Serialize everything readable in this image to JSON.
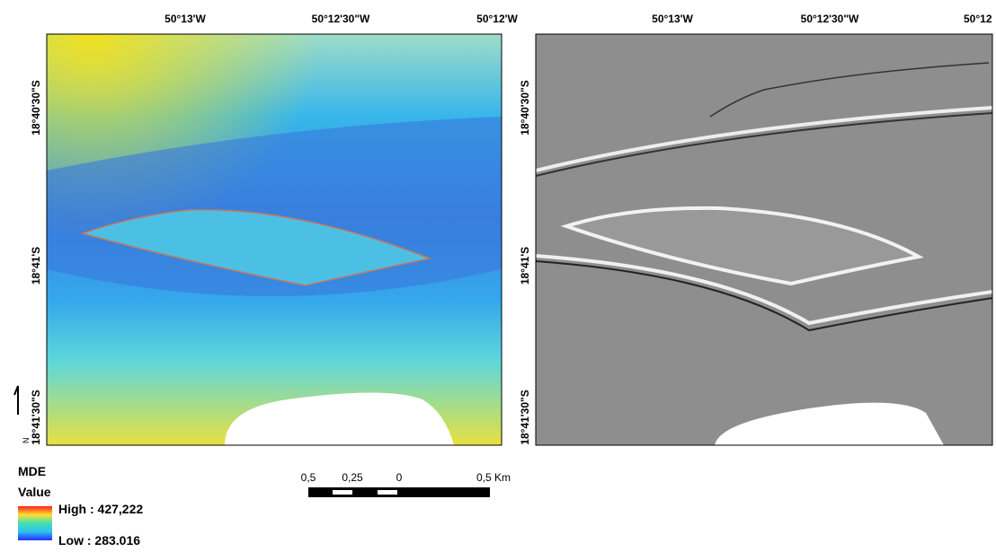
{
  "left_map": {
    "top_labels": [
      "50°13'W",
      "50°12'30\"W",
      "50°12'W"
    ],
    "side_labels": [
      "18°40'30\"S",
      "18°41'S",
      "18°41'30\"S"
    ]
  },
  "right_map": {
    "top_labels": [
      "50°13'W",
      "50°12'30\"W",
      "50°12"
    ],
    "side_labels": [
      "18°40'30\"S",
      "18°41'S",
      "18°41'30\"S"
    ]
  },
  "north_arrow": "N",
  "legend": {
    "title": "MDE",
    "subtitle": "Value",
    "high": "High : 427,222",
    "low": "Low : 283.016"
  },
  "scale_bar": [
    "0,5",
    "0,25",
    "0",
    "0,5 Km"
  ]
}
